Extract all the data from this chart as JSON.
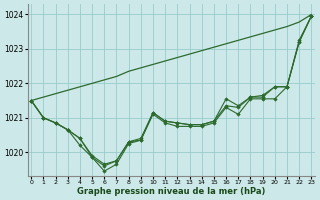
{
  "x": [
    0,
    1,
    2,
    3,
    4,
    5,
    6,
    7,
    8,
    9,
    10,
    11,
    12,
    13,
    14,
    15,
    16,
    17,
    18,
    19,
    20,
    21,
    22,
    23
  ],
  "trend_line": [
    1021.5,
    1021.6,
    1021.7,
    1021.8,
    1021.9,
    1022.0,
    1022.1,
    1022.2,
    1022.35,
    1022.45,
    1022.55,
    1022.65,
    1022.75,
    1022.85,
    1022.95,
    1023.05,
    1023.15,
    1023.25,
    1023.35,
    1023.45,
    1023.55,
    1023.65,
    1023.78,
    1024.0
  ],
  "series": [
    [
      1021.5,
      1021.0,
      1020.85,
      1020.65,
      1020.2,
      1019.85,
      1019.45,
      1019.65,
      1020.25,
      1020.35,
      1021.1,
      1020.85,
      1020.75,
      1020.75,
      1020.75,
      1020.85,
      1021.3,
      1021.1,
      1021.55,
      1021.55,
      1021.55,
      1021.9,
      1023.2,
      1023.95
    ],
    [
      1021.5,
      1021.0,
      1020.85,
      1020.65,
      1020.4,
      1019.85,
      1019.6,
      1019.75,
      1020.3,
      1020.35,
      1021.15,
      1020.9,
      1020.85,
      1020.8,
      1020.8,
      1020.9,
      1021.35,
      1021.3,
      1021.6,
      1021.6,
      1021.9,
      1021.9,
      1023.2,
      1023.95
    ],
    [
      1021.5,
      1021.0,
      1020.85,
      1020.65,
      1020.4,
      1019.9,
      1019.65,
      1019.75,
      1020.3,
      1020.4,
      1021.15,
      1020.9,
      1020.85,
      1020.8,
      1020.8,
      1020.9,
      1021.55,
      1021.35,
      1021.6,
      1021.65,
      1021.9,
      1021.9,
      1023.25,
      1023.95
    ]
  ],
  "line_color": "#2d6a2d",
  "marker_color": "#2d6a2d",
  "bg_color": "#cce8e8",
  "grid_color": "#99cccc",
  "ylabel_ticks": [
    1020,
    1021,
    1022,
    1023,
    1024
  ],
  "xlabel_label": "Graphe pression niveau de la mer (hPa)",
  "ylim": [
    1019.3,
    1024.3
  ],
  "xlim": [
    -0.3,
    23.3
  ]
}
